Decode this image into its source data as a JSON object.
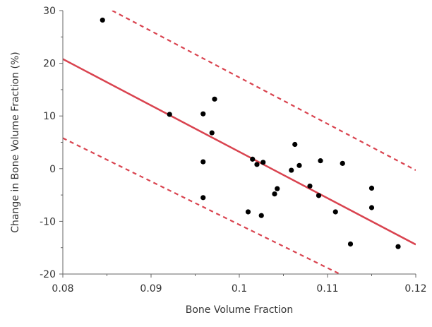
{
  "chart_data": {
    "type": "scatter",
    "xlabel": "Bone Volume Fraction",
    "ylabel": "Change in Bone Volume Fraction (%)",
    "xlim": [
      0.08,
      0.12
    ],
    "ylim": [
      -20,
      30
    ],
    "xticks": [
      "0.08",
      "0.09",
      "0.1",
      "0.11",
      "0.12"
    ],
    "yticks": [
      "-20",
      "-10",
      "0",
      "10",
      "20",
      "30"
    ],
    "grid": false,
    "colors": {
      "points": "#000000",
      "fit": "#d9434f",
      "axes": "#666666"
    },
    "points": [
      {
        "x": 0.0845,
        "y": 28.2
      },
      {
        "x": 0.0921,
        "y": 10.3
      },
      {
        "x": 0.0959,
        "y": 10.4
      },
      {
        "x": 0.0959,
        "y": 1.3
      },
      {
        "x": 0.0959,
        "y": -5.5
      },
      {
        "x": 0.0969,
        "y": 6.8
      },
      {
        "x": 0.0972,
        "y": 13.2
      },
      {
        "x": 0.101,
        "y": -8.2
      },
      {
        "x": 0.1015,
        "y": 1.8
      },
      {
        "x": 0.102,
        "y": 0.8
      },
      {
        "x": 0.1025,
        "y": -8.9
      },
      {
        "x": 0.1027,
        "y": 1.2
      },
      {
        "x": 0.104,
        "y": -4.8
      },
      {
        "x": 0.1043,
        "y": -3.8
      },
      {
        "x": 0.1059,
        "y": -0.3
      },
      {
        "x": 0.1063,
        "y": 4.6
      },
      {
        "x": 0.1068,
        "y": 0.6
      },
      {
        "x": 0.108,
        "y": -3.3
      },
      {
        "x": 0.109,
        "y": -5.1
      },
      {
        "x": 0.1092,
        "y": 1.5
      },
      {
        "x": 0.1109,
        "y": -8.2
      },
      {
        "x": 0.1117,
        "y": 1.0
      },
      {
        "x": 0.1126,
        "y": -14.3
      },
      {
        "x": 0.115,
        "y": -3.7
      },
      {
        "x": 0.115,
        "y": -7.4
      },
      {
        "x": 0.118,
        "y": -14.8
      }
    ],
    "fit_line": {
      "x": [
        0.08,
        0.12
      ],
      "y": [
        20.8,
        -14.4
      ]
    },
    "upper_band": {
      "x": [
        0.0856,
        0.12
      ],
      "y": [
        30,
        -0.3
      ]
    },
    "lower_band": {
      "x": [
        0.08,
        0.1114
      ],
      "y": [
        5.8,
        -20
      ]
    }
  }
}
